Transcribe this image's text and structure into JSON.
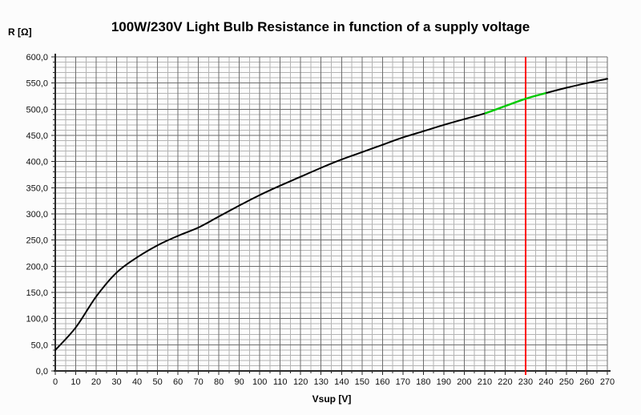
{
  "title": "100W/230V Light Bulb Resistance in function of a supply voltage",
  "chart_data": {
    "type": "line",
    "title": "100W/230V Light Bulb Resistance in function of a supply voltage",
    "x_label": "Vsup [V]",
    "y_label": "R [Ω]",
    "xlim": [
      0,
      270
    ],
    "ylim": [
      0,
      600
    ],
    "grid": {
      "visible": true,
      "x_minor_step": 5,
      "x_major_step": 10,
      "y_minor_step": 10,
      "y_major_step": 50,
      "minor_color": "#b4b4b4",
      "major_color": "#6e6e6e",
      "axis_color": "#2a2a2a"
    },
    "x_tick_labels": [
      "0",
      "10",
      "20",
      "30",
      "40",
      "50",
      "60",
      "70",
      "80",
      "90",
      "100",
      "110",
      "120",
      "130",
      "140",
      "150",
      "160",
      "170",
      "180",
      "190",
      "200",
      "210",
      "220",
      "230",
      "240",
      "250",
      "260",
      "270"
    ],
    "y_tick_labels": [
      "0,0",
      "50,0",
      "100,0",
      "150,0",
      "200,0",
      "250,0",
      "300,0",
      "350,0",
      "400,0",
      "450,0",
      "500,0",
      "550,0",
      "600,0"
    ],
    "x": [
      0,
      10,
      20,
      30,
      40,
      50,
      60,
      70,
      80,
      90,
      100,
      110,
      120,
      130,
      140,
      150,
      160,
      170,
      180,
      190,
      200,
      210,
      220,
      230,
      240,
      250,
      260,
      270
    ],
    "series": [
      {
        "name": "bulb-resistance",
        "color": "#000000",
        "values": [
          40,
          83,
          142,
          188,
          217,
          240,
          258,
          274,
          295,
          316,
          336,
          354,
          371,
          388,
          404,
          418,
          432,
          446,
          458,
          470,
          481,
          492,
          506,
          520,
          531,
          541,
          550,
          558
        ]
      }
    ],
    "annotations": {
      "vline": {
        "x": 230,
        "color": "#ff0000"
      },
      "highlight_segment": {
        "x_start": 210,
        "x_end": 240,
        "color": "#00cc00"
      }
    },
    "legend": {
      "visible": false
    }
  }
}
